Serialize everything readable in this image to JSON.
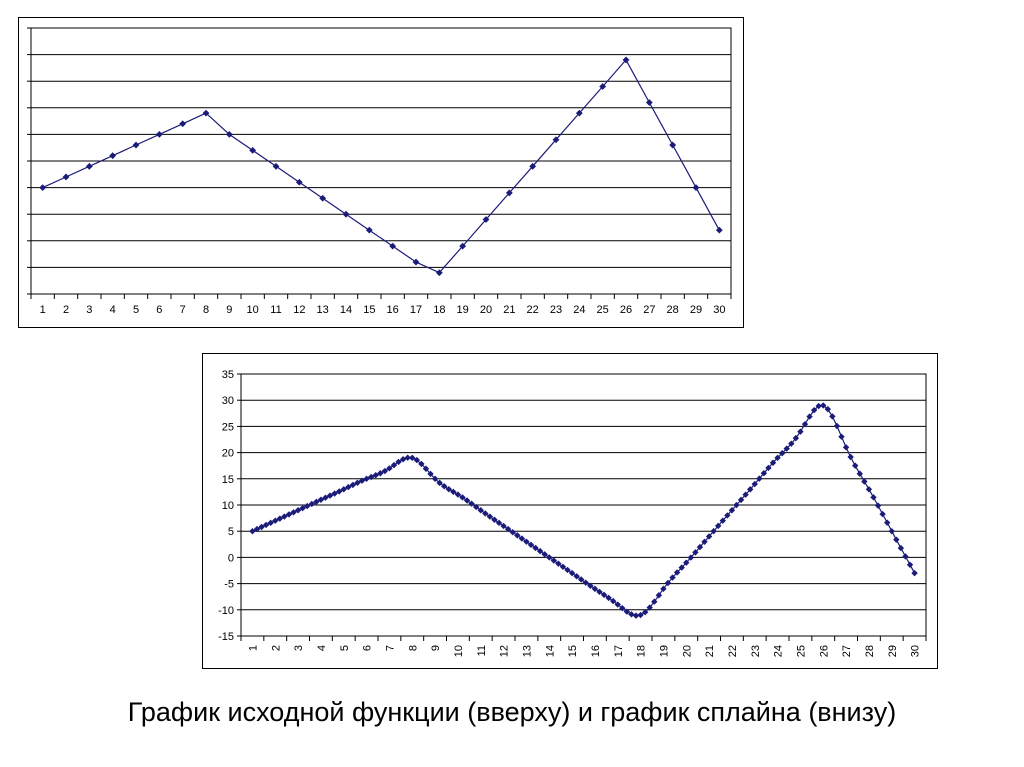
{
  "caption": "График исходной функции (вверху) и график сплайна (внизу)",
  "colors": {
    "series": "#1b1b7a",
    "grid": "#000000",
    "background": "#ffffff"
  },
  "chart_data": [
    {
      "type": "line",
      "title": "",
      "x_categories": [
        1,
        2,
        3,
        4,
        5,
        6,
        7,
        8,
        9,
        10,
        11,
        12,
        13,
        14,
        15,
        16,
        17,
        18,
        19,
        20,
        21,
        22,
        23,
        24,
        25,
        26,
        27,
        28,
        29,
        30
      ],
      "series": [
        {
          "values": [
            5,
            7,
            9,
            11,
            13,
            15,
            17,
            19,
            15,
            12,
            9,
            6,
            3,
            0,
            -3,
            -6,
            -9,
            -11,
            -6,
            -1,
            4,
            9,
            14,
            19,
            24,
            29,
            21,
            13,
            5,
            -3
          ]
        }
      ],
      "ylim": [
        -15,
        35
      ],
      "y_ticks": [
        -15,
        -10,
        -5,
        0,
        5,
        10,
        15,
        20,
        25,
        30,
        35
      ],
      "y_tick_labels_visible": false,
      "grid": "horizontal",
      "markers": "diamond",
      "legend": "none"
    },
    {
      "type": "line",
      "title": "",
      "x_categories": [
        1,
        2,
        3,
        4,
        5,
        6,
        7,
        8,
        9,
        10,
        11,
        12,
        13,
        14,
        15,
        16,
        17,
        18,
        19,
        20,
        21,
        22,
        23,
        24,
        25,
        26,
        27,
        28,
        29,
        30
      ],
      "x_tick_rotation": "vertical",
      "samples_per_interval": 5,
      "interpolation": "cubic-spline",
      "series": [
        {
          "values": [
            5,
            7,
            9,
            11,
            13,
            15,
            17,
            19,
            15,
            12,
            9,
            6,
            3,
            0,
            -3,
            -6,
            -9,
            -11,
            -6,
            -1,
            4,
            9,
            14,
            19,
            24,
            29,
            21,
            13,
            5,
            -3
          ]
        }
      ],
      "ylim": [
        -15,
        35
      ],
      "y_ticks": [
        -15,
        -10,
        -5,
        0,
        5,
        10,
        15,
        20,
        25,
        30,
        35
      ],
      "y_tick_labels_visible": true,
      "grid": "horizontal",
      "markers": "diamond",
      "legend": "none"
    }
  ]
}
